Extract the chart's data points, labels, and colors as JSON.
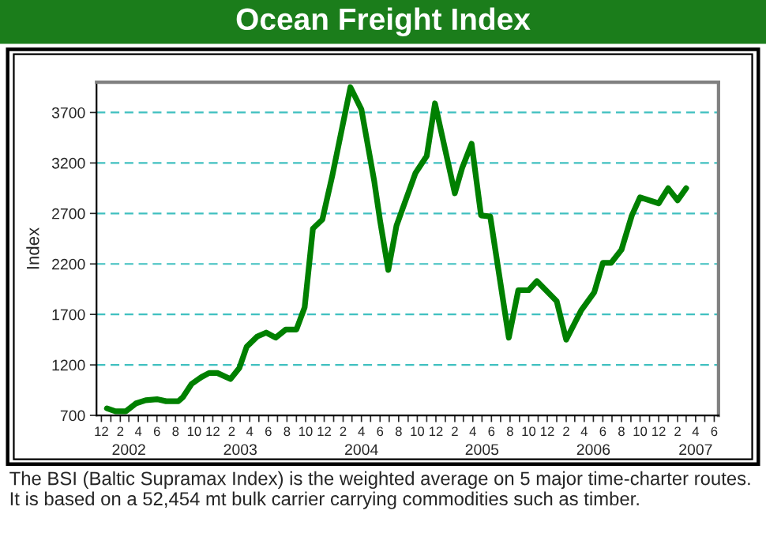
{
  "chart_data": {
    "type": "line",
    "title": "Ocean Freight Index",
    "ylabel": "Index",
    "annotations": [
      "The BSI (Baltic Supramax Index) is the weighted average on 5 major time-charter routes. It is based on a 52,454 mt bulk carrier carrying commodities such as timber."
    ],
    "x": [
      "2001-12-19",
      "2002-01-16",
      "2002-02-19",
      "2002-03-25",
      "2002-04-25",
      "2002-06-01",
      "2002-07-01",
      "2002-08-10",
      "2002-08-25",
      "2002-09-22",
      "2002-10-25",
      "2002-11-19",
      "2002-12-16",
      "2003-01-28",
      "2003-02-26",
      "2003-03-22",
      "2003-04-25",
      "2003-05-25",
      "2003-06-25",
      "2003-07-28",
      "2003-09-01",
      "2003-09-28",
      "2003-10-25",
      "2003-11-25",
      "2003-12-28",
      "2004-02-25",
      "2004-04-01",
      "2004-05-13",
      "2004-06-01",
      "2004-06-28",
      "2004-07-25",
      "2004-09-25",
      "2004-11-01",
      "2004-11-28",
      "2005-02-01",
      "2005-02-25",
      "2005-03-28",
      "2005-04-28",
      "2005-05-28",
      "2005-07-28",
      "2005-08-28",
      "2005-10-01",
      "2005-10-28",
      "2006-01-01",
      "2006-02-01",
      "2006-03-22",
      "2006-05-04",
      "2006-06-01",
      "2006-06-28",
      "2006-08-01",
      "2006-09-04",
      "2006-10-01",
      "2006-12-01",
      "2007-01-01",
      "2007-02-01",
      "2007-03-01"
    ],
    "series": [
      {
        "color": "#008000",
        "values": [
          770,
          740,
          740,
          820,
          850,
          860,
          840,
          840,
          880,
          1010,
          1080,
          1120,
          1120,
          1060,
          1170,
          1380,
          1480,
          1520,
          1470,
          1550,
          1550,
          1770,
          2550,
          2640,
          3080,
          3950,
          3730,
          3020,
          2630,
          2140,
          2580,
          3100,
          3270,
          3790,
          2900,
          3150,
          3390,
          2680,
          2670,
          1470,
          1940,
          1940,
          2030,
          1830,
          1450,
          1740,
          1920,
          2210,
          2210,
          2340,
          2680,
          2860,
          2800,
          2950,
          2830,
          2950
        ]
      }
    ],
    "xlim": [
      "2001-11-15",
      "2007-06-15"
    ],
    "xticks": [
      {
        "value": "2001-12",
        "label": "12"
      },
      {
        "value": "2002-01",
        "label": null
      },
      {
        "value": "2002-02",
        "label": "2"
      },
      {
        "value": "2002-03",
        "label": null
      },
      {
        "value": "2002-04",
        "label": "4"
      },
      {
        "value": "2002-05",
        "label": null
      },
      {
        "value": "2002-06",
        "label": "6"
      },
      {
        "value": "2002-07",
        "label": null
      },
      {
        "value": "2002-08",
        "label": "8"
      },
      {
        "value": "2002-09",
        "label": null
      },
      {
        "value": "2002-10",
        "label": "10"
      },
      {
        "value": "2002-11",
        "label": null
      },
      {
        "value": "2002-12",
        "label": "12"
      },
      {
        "value": "2003-01",
        "label": null
      },
      {
        "value": "2003-02",
        "label": "2"
      },
      {
        "value": "2003-03",
        "label": null
      },
      {
        "value": "2003-04",
        "label": "4"
      },
      {
        "value": "2003-05",
        "label": null
      },
      {
        "value": "2003-06",
        "label": "6"
      },
      {
        "value": "2003-07",
        "label": null
      },
      {
        "value": "2003-08",
        "label": "8"
      },
      {
        "value": "2003-09",
        "label": null
      },
      {
        "value": "2003-10",
        "label": "10"
      },
      {
        "value": "2003-11",
        "label": null
      },
      {
        "value": "2003-12",
        "label": "12"
      },
      {
        "value": "2004-01",
        "label": null
      },
      {
        "value": "2004-02",
        "label": "2"
      },
      {
        "value": "2004-03",
        "label": null
      },
      {
        "value": "2004-04",
        "label": "4"
      },
      {
        "value": "2004-05",
        "label": null
      },
      {
        "value": "2004-06",
        "label": "6"
      },
      {
        "value": "2004-07",
        "label": null
      },
      {
        "value": "2004-08",
        "label": "8"
      },
      {
        "value": "2004-09",
        "label": null
      },
      {
        "value": "2004-10",
        "label": "10"
      },
      {
        "value": "2004-11",
        "label": null
      },
      {
        "value": "2004-12",
        "label": "12"
      },
      {
        "value": "2005-01",
        "label": null
      },
      {
        "value": "2005-02",
        "label": "2"
      },
      {
        "value": "2005-03",
        "label": null
      },
      {
        "value": "2005-04",
        "label": "4"
      },
      {
        "value": "2005-05",
        "label": null
      },
      {
        "value": "2005-06",
        "label": "6"
      },
      {
        "value": "2005-07",
        "label": null
      },
      {
        "value": "2005-08",
        "label": "8"
      },
      {
        "value": "2005-09",
        "label": null
      },
      {
        "value": "2005-10",
        "label": "10"
      },
      {
        "value": "2005-11",
        "label": null
      },
      {
        "value": "2005-12",
        "label": "12"
      },
      {
        "value": "2006-01",
        "label": null
      },
      {
        "value": "2006-02",
        "label": "2"
      },
      {
        "value": "2006-03",
        "label": null
      },
      {
        "value": "2006-04",
        "label": "4"
      },
      {
        "value": "2006-05",
        "label": null
      },
      {
        "value": "2006-06",
        "label": "6"
      },
      {
        "value": "2006-07",
        "label": null
      },
      {
        "value": "2006-08",
        "label": "8"
      },
      {
        "value": "2006-09",
        "label": null
      },
      {
        "value": "2006-10",
        "label": "10"
      },
      {
        "value": "2006-11",
        "label": null
      },
      {
        "value": "2006-12",
        "label": "12"
      },
      {
        "value": "2007-01",
        "label": null
      },
      {
        "value": "2007-02",
        "label": "2"
      },
      {
        "value": "2007-03",
        "label": null
      },
      {
        "value": "2007-04",
        "label": "4"
      },
      {
        "value": "2007-05",
        "label": null
      },
      {
        "value": "2007-06",
        "label": "6"
      }
    ],
    "x2lim": [
      "2001-11-15",
      "2007-06-15"
    ],
    "x2ticks": [
      {
        "value": "2002-03",
        "label": "2002"
      },
      {
        "value": "2003-03",
        "label": "2003"
      },
      {
        "value": "2004-04",
        "label": "2004"
      },
      {
        "value": "2005-05",
        "label": "2005"
      },
      {
        "value": "2006-05",
        "label": "2006"
      },
      {
        "value": "2007-04",
        "label": "2007"
      }
    ],
    "ylim": [
      700,
      4000
    ],
    "yticks": [
      700,
      1200,
      1700,
      2200,
      2700,
      3200,
      3700
    ],
    "grid": "y",
    "legend": false,
    "marker": "none",
    "line_style": "solid"
  }
}
